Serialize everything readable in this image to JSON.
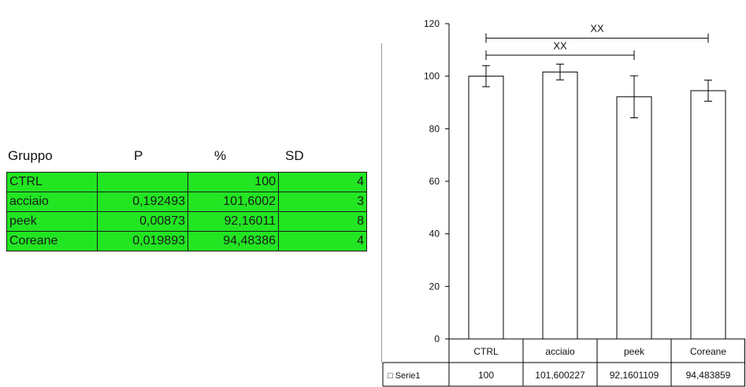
{
  "sheet": {
    "headers": [
      "Gruppo",
      "P",
      "%",
      "SD"
    ],
    "rows": [
      {
        "gruppo": "CTRL",
        "p": "",
        "pct": "100",
        "sd": "4"
      },
      {
        "gruppo": "acciaio",
        "p": "0,192493",
        "pct": "101,6002",
        "sd": "3"
      },
      {
        "gruppo": "peek",
        "p": "0,00873",
        "pct": "92,16011",
        "sd": "8"
      },
      {
        "gruppo": "Coreane",
        "p": "0,019893",
        "pct": "94,48386",
        "sd": "4"
      }
    ],
    "colors": {
      "cell": "#22e622",
      "highlight": "#e81d1d",
      "blank": "#ffffff"
    }
  },
  "chart_data": {
    "type": "bar",
    "categories": [
      "CTRL",
      "acciaio",
      "peek",
      "Coreane"
    ],
    "series": [
      {
        "name": "Serie1",
        "values": [
          100,
          101.600227,
          92.1601109,
          94.483859
        ],
        "errors": [
          4,
          3,
          8,
          4
        ]
      }
    ],
    "table_values": [
      "100",
      "101,600227",
      "92,1601109",
      "94,483859"
    ],
    "ylim": [
      0,
      120
    ],
    "yticks": [
      0,
      20,
      40,
      60,
      80,
      100,
      120
    ],
    "grid": false,
    "legend_marker": "□",
    "annotations": [
      {
        "label": "XX",
        "from": "CTRL",
        "to": "Coreane"
      },
      {
        "label": "XX",
        "from": "CTRL",
        "to": "peek"
      }
    ],
    "colors": {
      "bar_fill": "#ffffff",
      "bar_stroke": "#000000"
    }
  }
}
